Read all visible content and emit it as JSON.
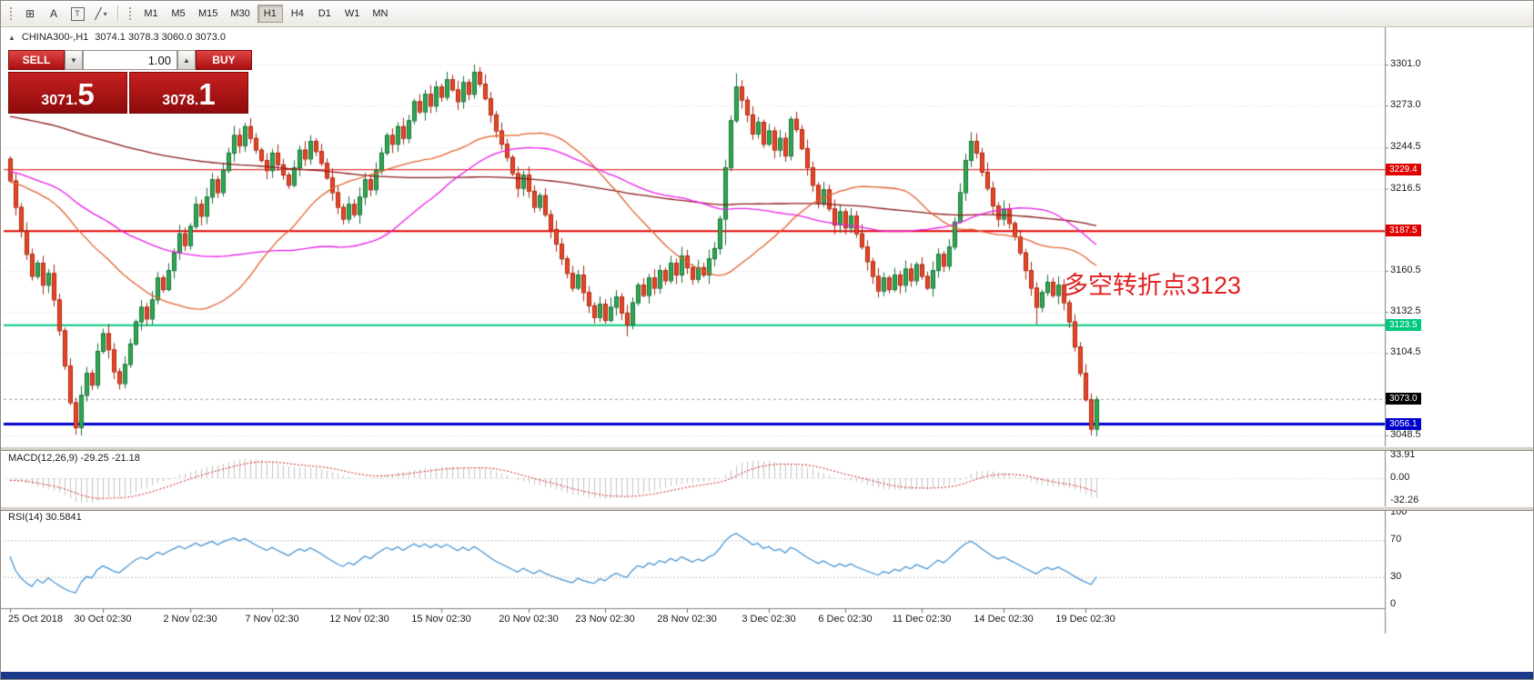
{
  "toolbar": {
    "tools": [
      {
        "name": "crosshair",
        "glyph": "⊞"
      },
      {
        "name": "text",
        "glyph": "A"
      },
      {
        "name": "text-box",
        "glyph": "T"
      },
      {
        "name": "objects",
        "glyph": "╱",
        "chevron": "▾"
      }
    ],
    "timeframes": [
      {
        "label": "M1",
        "active": false
      },
      {
        "label": "M5",
        "active": false
      },
      {
        "label": "M15",
        "active": false
      },
      {
        "label": "M30",
        "active": false
      },
      {
        "label": "H1",
        "active": true
      },
      {
        "label": "H4",
        "active": false
      },
      {
        "label": "D1",
        "active": false
      },
      {
        "label": "W1",
        "active": false
      },
      {
        "label": "MN",
        "active": false
      }
    ]
  },
  "chart": {
    "title": {
      "marker": "▲",
      "symbol": "CHINA300-,H1",
      "ohlc": "3074.1 3078.3 3060.0 3073.0"
    },
    "trade_panel": {
      "sell_label": "SELL",
      "buy_label": "BUY",
      "volume": "1.00",
      "down_glyph": "▼",
      "up_glyph": "▲",
      "sell_price_small": "3071.",
      "sell_price_big": "5",
      "buy_price_small": "3078.",
      "buy_price_big": "1"
    },
    "annotation": {
      "text": "多空转折点3123",
      "color": "#e02020"
    },
    "axis": {
      "price_max": 3327,
      "price_min": 3041,
      "ticks": [
        {
          "value": 3301.0,
          "label": "3301.0"
        },
        {
          "value": 3273.0,
          "label": "3273.0"
        },
        {
          "value": 3244.5,
          "label": "3244.5"
        },
        {
          "value": 3216.5,
          "label": "3216.5"
        },
        {
          "value": 3160.5,
          "label": "3160.5"
        },
        {
          "value": 3132.5,
          "label": "3132.5"
        },
        {
          "value": 3104.5,
          "label": "3104.5"
        },
        {
          "value": 3048.5,
          "label": "3048.5"
        }
      ]
    },
    "hlines": [
      {
        "price": 3229.4,
        "label": "3229.4",
        "color": "#e00000",
        "width": 1
      },
      {
        "price": 3187.5,
        "label": "3187.5",
        "color": "#e00000",
        "width": 2
      },
      {
        "price": 3123.5,
        "label": "3123.5",
        "color": "#00c87d",
        "width": 2
      },
      {
        "price": 3056.1,
        "label": "3056.1",
        "color": "#0000cc",
        "width": 3
      }
    ],
    "current_price": {
      "value": 3073.0,
      "label": "3073.0",
      "line_color": "#999999",
      "box_color": "#000000"
    },
    "candles": {
      "first_open": 3237,
      "up_color": "#2fa84f",
      "up_edge": "#17703a",
      "down_color": "#ea4426",
      "down_edge": "#a8280f",
      "closes": [
        3222,
        3204,
        3188,
        3172,
        3157,
        3166,
        3151,
        3159,
        3141,
        3120,
        3096,
        3071,
        3054,
        3076,
        3091,
        3083,
        3106,
        3118,
        3107,
        3092,
        3084,
        3097,
        3111,
        3126,
        3136,
        3128,
        3141,
        3156,
        3148,
        3161,
        3173,
        3186,
        3178,
        3191,
        3206,
        3198,
        3211,
        3223,
        3214,
        3229,
        3241,
        3253,
        3246,
        3259,
        3251,
        3243,
        3236,
        3229,
        3241,
        3233,
        3226,
        3219,
        3231,
        3243,
        3237,
        3249,
        3242,
        3234,
        3224,
        3214,
        3204,
        3196,
        3206,
        3199,
        3211,
        3223,
        3216,
        3229,
        3241,
        3253,
        3247,
        3259,
        3251,
        3263,
        3276,
        3269,
        3281,
        3273,
        3286,
        3279,
        3291,
        3284,
        3276,
        3289,
        3281,
        3296,
        3288,
        3278,
        3267,
        3256,
        3247,
        3238,
        3227,
        3217,
        3226,
        3215,
        3204,
        3212,
        3199,
        3189,
        3179,
        3169,
        3159,
        3149,
        3158,
        3146,
        3137,
        3129,
        3138,
        3127,
        3136,
        3143,
        3132,
        3124,
        3139,
        3151,
        3144,
        3156,
        3149,
        3161,
        3154,
        3166,
        3158,
        3171,
        3163,
        3155,
        3163,
        3158,
        3169,
        3176,
        3196,
        3231,
        3263,
        3286,
        3277,
        3267,
        3254,
        3262,
        3247,
        3256,
        3243,
        3251,
        3239,
        3264,
        3257,
        3244,
        3231,
        3219,
        3207,
        3216,
        3203,
        3192,
        3201,
        3190,
        3198,
        3186,
        3177,
        3167,
        3157,
        3147,
        3156,
        3148,
        3158,
        3151,
        3162,
        3154,
        3165,
        3157,
        3149,
        3161,
        3172,
        3164,
        3177,
        3194,
        3214,
        3236,
        3249,
        3241,
        3228,
        3217,
        3205,
        3196,
        3203,
        3193,
        3184,
        3173,
        3161,
        3149,
        3136,
        3146,
        3153,
        3144,
        3151,
        3139,
        3126,
        3109,
        3091,
        3073,
        3053,
        3073
      ],
      "low_overrides": {
        "12": 3049,
        "113": 3116,
        "131": 3178,
        "188": 3124,
        "198": 3048.5
      },
      "high_overrides": {
        "85": 3301,
        "133": 3295,
        "176": 3255
      }
    },
    "ma_seed": {
      "count": 200,
      "from": 3320,
      "to": 3212,
      "wave": 7
    },
    "mas": [
      {
        "period": 200,
        "color": "#8b1a1a",
        "width": 1.3
      },
      {
        "period": 60,
        "color": "#e91ee9",
        "width": 1.3
      },
      {
        "period": 34,
        "color": "#e2622e",
        "width": 1.3
      }
    ]
  },
  "macd": {
    "label": "MACD(12,26,9) -29.25 -21.18",
    "fast": 12,
    "slow": 26,
    "signal": 9,
    "axis_labels": [
      "33.91",
      "0.00",
      "-32.26"
    ],
    "hist_color": "#c4c4c4",
    "signal_color": "#cc2222"
  },
  "rsi": {
    "label": "RSI(14) 30.5841",
    "period": 14,
    "levels": [
      70,
      30
    ],
    "axis_labels": [
      "100",
      "70",
      "30",
      "0"
    ],
    "line_color": "#3d8fd1"
  },
  "time_axis": {
    "labels": [
      "25 Oct 2018",
      "30 Oct 02:30",
      "2 Nov 02:30",
      "7 Nov 02:30",
      "12 Nov 02:30",
      "15 Nov 02:30",
      "20 Nov 02:30",
      "23 Nov 02:30",
      "28 Nov 02:30",
      "3 Dec 02:30",
      "6 Dec 02:30",
      "11 Dec 02:30",
      "14 Dec 02:30",
      "19 Dec 02:30"
    ],
    "indices": [
      0,
      17,
      33,
      48,
      64,
      79,
      95,
      109,
      124,
      139,
      153,
      167,
      182,
      197
    ]
  },
  "window": {
    "bottom_bar_color": "#1c3a8a"
  }
}
